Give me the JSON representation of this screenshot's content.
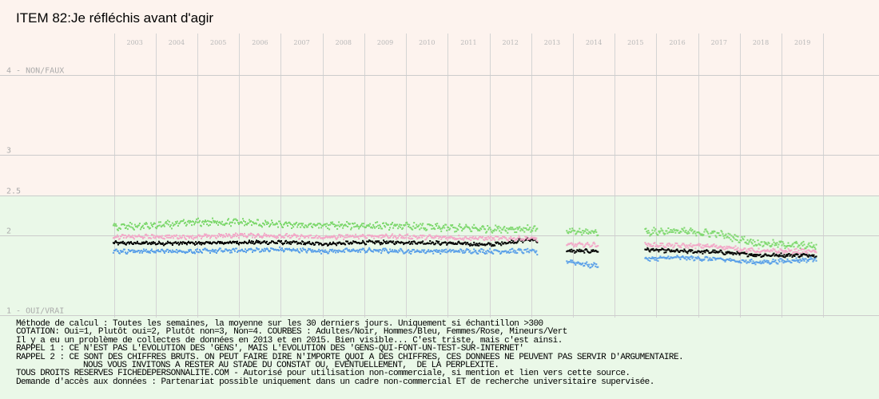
{
  "page": {
    "title": "ITEM 82:Je réfléchis avant d'agir"
  },
  "notes": {
    "method": "Méthode de calcul : Toutes les semaines, la moyenne sur les 30 derniers jours. Uniquement si échantillon >300",
    "cotation": "COTATION: Oui=1, Plutôt oui=2, Plutôt non=3, Non=4. COURBES : Adultes/Noir, Hommes/Bleu, Femmes/Rose, Mineurs/Vert",
    "problem": "Il y a eu un problème de collectes de données en 2013 et en 2015. Bien visible... C'est triste, mais c'est ainsi.",
    "rappel1": "RAPPEL 1 : CE N'EST PAS L'EVOLUTION DES 'GENS', MAIS L'EVOLUTION DES 'GENS-QUI-FONT-UN-TEST-SUR-INTERNET'",
    "rappel2": "RAPPEL 2 : CE SONT DES CHIFFRES BRUTS. ON PEUT FAIRE DIRE N'IMPORTE QUOI A DES CHIFFRES, CES DONNEES NE PEUVENT PAS SERVIR D'ARGUMENTAIRE.",
    "invite": "NOUS VOUS INVITONS A RESTER AU STADE DU CONSTAT OU, EVENTUELLEMENT,  DE LA PERPLEXITE.",
    "rights": "TOUS DROITS RESERVES FICHEDEPERSONNALITE.COM - Autorisé pour utilisation non-commerciale, si mention et lien vers cette source.",
    "access": "Demande d'accès aux données : Partenariat possible uniquement dans un cadre non-commercial ET de recherche universitaire supervisée."
  },
  "chart_data": {
    "type": "scatter",
    "title": "ITEM 82:Je réfléchis avant d'agir",
    "xlabel": "",
    "ylabel": "",
    "x_domain": [
      "2002-06-01",
      "2020-06-01"
    ],
    "ylim": [
      1,
      5
    ],
    "y_ticks": [
      {
        "value": 4,
        "label": "4 - NON/FAUX"
      },
      {
        "value": 3,
        "label": "3"
      },
      {
        "value": 2.5,
        "label": "2.5"
      },
      {
        "value": 2,
        "label": "2"
      },
      {
        "value": 1,
        "label": "1 - OUI/VRAI"
      }
    ],
    "year_labels": [
      "2003",
      "2004",
      "2005",
      "2006",
      "2007",
      "2008",
      "2009",
      "2010",
      "2011",
      "2012",
      "2013",
      "2014",
      "2015",
      "2016",
      "2017",
      "2018",
      "2019"
    ],
    "background_bands": [
      {
        "from": 1,
        "to": 2.5,
        "color": "#eaf8e8"
      },
      {
        "from": 2.5,
        "to": 5,
        "color": "#fdf3ee"
      }
    ],
    "grid": true,
    "legend": "none",
    "gaps": [
      [
        "2013-02-15",
        "2013-11-01"
      ],
      [
        "2014-08-01",
        "2015-09-15"
      ]
    ],
    "data_end": "2019-10-31",
    "series": [
      {
        "name": "Adultes",
        "color": "#000000",
        "x": [
          "2003-01-01",
          "2004-01-01",
          "2005-01-01",
          "2006-01-01",
          "2007-01-01",
          "2008-01-01",
          "2009-01-01",
          "2010-01-01",
          "2011-01-01",
          "2012-01-01",
          "2013-01-01",
          "2013-11-01",
          "2014-06-01",
          "2015-09-15",
          "2016-06-01",
          "2017-06-01",
          "2018-06-01",
          "2019-10-31"
        ],
        "y": [
          1.9,
          1.9,
          1.9,
          1.91,
          1.91,
          1.89,
          1.91,
          1.91,
          1.9,
          1.88,
          1.95,
          1.8,
          1.8,
          1.82,
          1.8,
          1.79,
          1.75,
          1.75
        ]
      },
      {
        "name": "Hommes",
        "color": "#5aa0e8",
        "x": [
          "2003-01-01",
          "2004-01-01",
          "2005-01-01",
          "2006-01-01",
          "2007-01-01",
          "2008-01-01",
          "2009-01-01",
          "2010-01-01",
          "2011-01-01",
          "2012-01-01",
          "2013-01-01",
          "2013-11-01",
          "2014-06-01",
          "2015-09-15",
          "2016-06-01",
          "2017-06-01",
          "2018-06-01",
          "2019-10-31"
        ],
        "y": [
          1.8,
          1.8,
          1.8,
          1.81,
          1.82,
          1.8,
          1.81,
          1.8,
          1.8,
          1.8,
          1.8,
          1.68,
          1.62,
          1.7,
          1.72,
          1.7,
          1.66,
          1.7
        ]
      },
      {
        "name": "Femmes",
        "color": "#f3a8c8",
        "x": [
          "2003-01-01",
          "2004-01-01",
          "2005-01-01",
          "2006-01-01",
          "2007-01-01",
          "2008-01-01",
          "2009-01-01",
          "2010-01-01",
          "2011-01-01",
          "2012-01-01",
          "2013-01-01",
          "2013-11-01",
          "2014-06-01",
          "2015-09-15",
          "2016-06-01",
          "2017-06-01",
          "2018-06-01",
          "2019-10-31"
        ],
        "y": [
          1.98,
          1.98,
          1.98,
          2.0,
          1.99,
          1.97,
          1.99,
          1.98,
          1.97,
          1.96,
          1.96,
          1.88,
          1.88,
          1.88,
          1.87,
          1.86,
          1.8,
          1.8
        ]
      },
      {
        "name": "Mineurs",
        "color": "#7ed86e",
        "x": [
          "2003-01-01",
          "2004-01-01",
          "2005-01-01",
          "2006-01-01",
          "2007-01-01",
          "2008-01-01",
          "2009-01-01",
          "2010-01-01",
          "2011-01-01",
          "2012-01-01",
          "2013-01-01",
          "2013-11-01",
          "2014-06-01",
          "2015-09-15",
          "2016-06-01",
          "2017-06-01",
          "2018-06-01",
          "2019-10-31"
        ],
        "y": [
          2.1,
          2.12,
          2.16,
          2.16,
          2.13,
          2.12,
          2.12,
          2.11,
          2.09,
          2.08,
          2.08,
          2.04,
          2.04,
          2.04,
          2.05,
          2.02,
          1.9,
          1.86
        ]
      }
    ]
  }
}
